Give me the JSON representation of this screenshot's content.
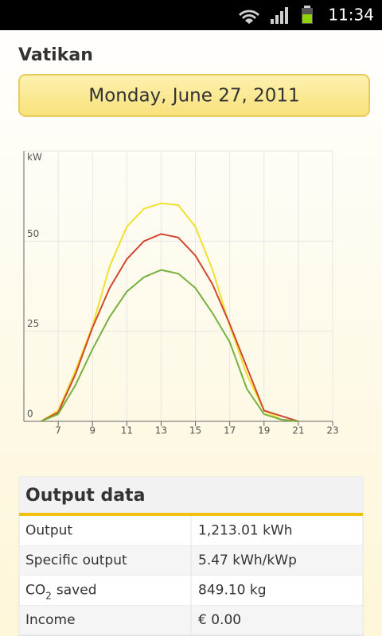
{
  "status_bar": {
    "time": "11:34"
  },
  "title": "Vatikan",
  "date": "Monday, June 27, 2011",
  "chart_data": {
    "type": "line",
    "y_label": "kW",
    "x": [
      6,
      7,
      8,
      9,
      10,
      11,
      12,
      13,
      14,
      15,
      16,
      17,
      18,
      19,
      20,
      21
    ],
    "series": [
      {
        "color": "#f0e030",
        "values": [
          0,
          3,
          14,
          26.5,
          43,
          54,
          59,
          60.5,
          60,
          54,
          42,
          26.5,
          13,
          3,
          0.5,
          0
        ]
      },
      {
        "color": "#d04830",
        "values": [
          0,
          2.5,
          13,
          26,
          37,
          45,
          50,
          52,
          51,
          46,
          38,
          27,
          15,
          3,
          1.5,
          0
        ]
      },
      {
        "color": "#78b040",
        "values": [
          0,
          2,
          10,
          20,
          29,
          36,
          40,
          42,
          41,
          37,
          30,
          22,
          9,
          2,
          0.5,
          0
        ]
      }
    ],
    "xlim": [
      5,
      23
    ],
    "xticks": [
      7,
      9,
      11,
      13,
      15,
      17,
      19,
      21,
      23
    ],
    "ylim": [
      0,
      75
    ],
    "yticks": [
      0,
      25,
      50
    ],
    "grid": true
  },
  "table": {
    "title": "Output data",
    "rows": [
      [
        "Output",
        "1,213.01 kWh"
      ],
      [
        "Specific output",
        "5.47 kWh/kWp"
      ],
      [
        [
          "CO",
          "2",
          "saved"
        ],
        "849.10 kg"
      ],
      [
        "Income",
        "€ 0.00"
      ]
    ]
  }
}
